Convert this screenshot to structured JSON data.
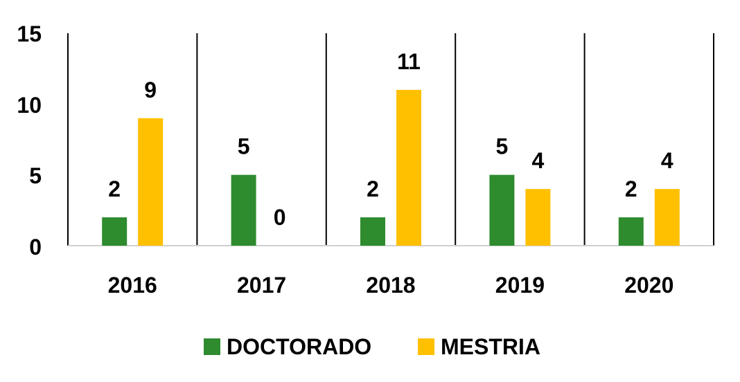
{
  "chart_data": {
    "type": "bar",
    "title": "",
    "xlabel": "",
    "ylabel": "",
    "categories": [
      "2016",
      "2017",
      "2018",
      "2019",
      "2020"
    ],
    "series": [
      {
        "name": "DOCTORADO",
        "values": [
          2,
          5,
          2,
          5,
          2
        ],
        "color": "#2E8B2E"
      },
      {
        "name": "MESTRIA",
        "values": [
          9,
          0,
          11,
          4,
          4
        ],
        "color": "#FFC000"
      }
    ],
    "ylim": [
      0,
      15
    ],
    "yticks": [
      "0",
      "5",
      "10",
      "15"
    ],
    "grid": "vertical category separators",
    "legend": "bottom",
    "data_labels": true
  }
}
